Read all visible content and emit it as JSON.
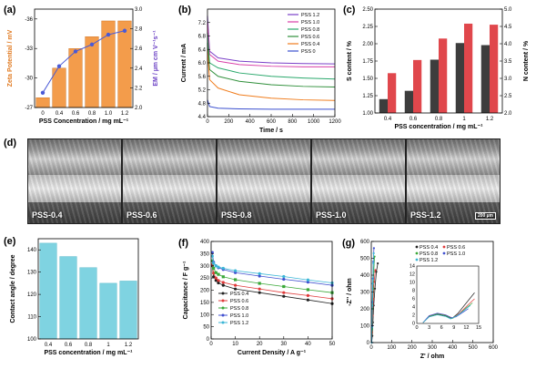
{
  "chart_data": [
    {
      "panel": "(a)",
      "type": "bar",
      "categories": [
        "0",
        "0.4",
        "0.6",
        "0.8",
        "1.0",
        "1.2"
      ],
      "bar_values": [
        -28.0,
        -31.0,
        -33.0,
        -34.2,
        -35.8,
        -35.8
      ],
      "line_values": [
        2.15,
        2.42,
        2.57,
        2.64,
        2.74,
        2.78
      ],
      "xlabel": "PSS Concentration / mg mL⁻¹",
      "ylabel": "Zeta Potential / mV",
      "ylabel2": "EM / µm cm V⁻¹s⁻¹",
      "ylim": [
        -27,
        -37
      ],
      "yticks": [
        "-27",
        "-30",
        "-33",
        "-36"
      ],
      "y2lim": [
        2.0,
        3.0
      ],
      "y2ticks": [
        "2.0",
        "2.2",
        "2.4",
        "2.6",
        "2.8",
        "3.0"
      ],
      "bar_color": "#f39c4b",
      "line_color": "#4a5ad6"
    },
    {
      "panel": "(b)",
      "type": "line",
      "xlabel": "Time / s",
      "ylabel": "Current / mA",
      "xlim": [
        0,
        1200
      ],
      "xticks": [
        "0",
        "200",
        "400",
        "600",
        "800",
        "1000",
        "1200"
      ],
      "ylim": [
        4.4,
        7.6
      ],
      "yticks": [
        "4.4",
        "4.8",
        "5.2",
        "5.6",
        "6.0",
        "6.4",
        "6.8",
        "7.2"
      ],
      "series": [
        {
          "name": "PSS 1.2",
          "color": "#7a40c8",
          "values": [
            [
              0,
              7.4
            ],
            [
              20,
              6.35
            ],
            [
              100,
              6.15
            ],
            [
              300,
              6.05
            ],
            [
              600,
              6.0
            ],
            [
              900,
              5.98
            ],
            [
              1200,
              5.97
            ]
          ]
        },
        {
          "name": "PSS 1.0",
          "color": "#d93fa8",
          "values": [
            [
              0,
              7.2
            ],
            [
              20,
              6.25
            ],
            [
              100,
              6.05
            ],
            [
              300,
              5.95
            ],
            [
              600,
              5.9
            ],
            [
              900,
              5.88
            ],
            [
              1200,
              5.88
            ]
          ]
        },
        {
          "name": "PSS 0.8",
          "color": "#2aa86c",
          "values": [
            [
              0,
              6.9
            ],
            [
              20,
              6.0
            ],
            [
              100,
              5.85
            ],
            [
              300,
              5.7
            ],
            [
              600,
              5.6
            ],
            [
              900,
              5.55
            ],
            [
              1200,
              5.52
            ]
          ]
        },
        {
          "name": "PSS 0.6",
          "color": "#2f8f3a",
          "values": [
            [
              0,
              6.6
            ],
            [
              20,
              5.8
            ],
            [
              100,
              5.6
            ],
            [
              300,
              5.45
            ],
            [
              600,
              5.35
            ],
            [
              900,
              5.3
            ],
            [
              1200,
              5.28
            ]
          ]
        },
        {
          "name": "PSS 0.4",
          "color": "#f07c1c",
          "values": [
            [
              0,
              6.4
            ],
            [
              20,
              5.5
            ],
            [
              100,
              5.25
            ],
            [
              300,
              5.05
            ],
            [
              600,
              4.95
            ],
            [
              900,
              4.9
            ],
            [
              1200,
              4.88
            ]
          ]
        },
        {
          "name": "PSS 0",
          "color": "#3a4fcf",
          "values": [
            [
              0,
              4.9
            ],
            [
              20,
              4.7
            ],
            [
              100,
              4.65
            ],
            [
              300,
              4.63
            ],
            [
              600,
              4.62
            ],
            [
              900,
              4.62
            ],
            [
              1200,
              4.62
            ]
          ]
        }
      ]
    },
    {
      "panel": "(c)",
      "type": "bar",
      "categories": [
        "0.4",
        "0.6",
        "0.8",
        "1",
        "1.2"
      ],
      "xlabel": "PSS concentration / mg mL⁻¹",
      "ylabel": "S content / %",
      "ylabel2": "N content / %",
      "ylim": [
        1.0,
        2.5
      ],
      "yticks": [
        "1.00",
        "1.25",
        "1.50",
        "1.75",
        "2.00",
        "2.25",
        "2.50"
      ],
      "y2lim": [
        2.0,
        5.0
      ],
      "y2ticks": [
        "2.0",
        "2.5",
        "3.0",
        "3.5",
        "4.0",
        "4.5",
        "5.0"
      ],
      "series": [
        {
          "name": "S content",
          "color": "#3d3d3d",
          "values": [
            1.2,
            1.32,
            1.77,
            2.01,
            1.98
          ]
        },
        {
          "name": "N content",
          "color": "#e0474c",
          "values": [
            3.15,
            3.53,
            4.15,
            4.58,
            4.55
          ]
        }
      ]
    },
    {
      "panel": "(e)",
      "type": "bar",
      "categories": [
        "0.4",
        "0.6",
        "0.8",
        "1",
        "1.2"
      ],
      "values": [
        143,
        137,
        132,
        125,
        126
      ],
      "xlabel": "PSS concentration / mg mL⁻¹",
      "ylabel": "Contact angle / degree",
      "ylim": [
        100,
        145
      ],
      "yticks": [
        "100",
        "110",
        "120",
        "130",
        "140"
      ],
      "bar_color": "#7fd3e1"
    },
    {
      "panel": "(f)",
      "type": "line",
      "xlabel": "Current Density / A g⁻¹",
      "ylabel": "Capacitance / F g⁻¹",
      "xlim": [
        0,
        50
      ],
      "xticks": [
        "0",
        "10",
        "20",
        "30",
        "40",
        "50"
      ],
      "ylim": [
        0,
        400
      ],
      "yticks": [
        "0",
        "50",
        "100",
        "150",
        "200",
        "250",
        "300",
        "350",
        "400"
      ],
      "x": [
        0.5,
        1,
        2,
        3,
        5,
        10,
        20,
        30,
        40,
        50
      ],
      "series": [
        {
          "name": "PSS 0.4",
          "color": "#222222",
          "values": [
            300,
            255,
            240,
            230,
            220,
            205,
            190,
            175,
            160,
            145
          ]
        },
        {
          "name": "PSS 0.6",
          "color": "#e03a3a",
          "values": [
            305,
            270,
            250,
            240,
            232,
            220,
            205,
            190,
            178,
            165
          ]
        },
        {
          "name": "PSS 0.8",
          "color": "#3aa838",
          "values": [
            320,
            290,
            272,
            265,
            255,
            243,
            228,
            215,
            202,
            190
          ]
        },
        {
          "name": "PSS 1.0",
          "color": "#4050d0",
          "values": [
            355,
            315,
            300,
            292,
            285,
            272,
            258,
            245,
            233,
            220
          ]
        },
        {
          "name": "PSS 1.2",
          "color": "#3bb6d6",
          "values": [
            340,
            310,
            300,
            295,
            290,
            280,
            268,
            256,
            242,
            230
          ]
        }
      ]
    },
    {
      "panel": "(g)",
      "type": "scatter",
      "xlabel": "Z' / ohm",
      "ylabel": "-Z'' / ohm",
      "xlim": [
        0,
        600
      ],
      "xticks": [
        "0",
        "100",
        "200",
        "300",
        "400",
        "500",
        "600"
      ],
      "ylim": [
        0,
        600
      ],
      "yticks": [
        "0",
        "100",
        "200",
        "300",
        "400",
        "500",
        "600"
      ],
      "inset": {
        "xlim": [
          0,
          15
        ],
        "xticks": [
          "0",
          "3",
          "6",
          "9",
          "12",
          "15"
        ],
        "ylim": [
          0,
          14
        ],
        "yticks": [
          "0",
          "2",
          "4",
          "6",
          "8",
          "10",
          "12",
          "14"
        ]
      },
      "series": [
        {
          "name": "PSS 0.4",
          "color": "#222222",
          "values": [
            [
              2,
              0
            ],
            [
              5,
              40
            ],
            [
              8,
              120
            ],
            [
              12,
              220
            ],
            [
              18,
              320
            ],
            [
              25,
              420
            ],
            [
              32,
              470
            ]
          ]
        },
        {
          "name": "PSS 0.6",
          "color": "#e03a3a",
          "values": [
            [
              2,
              0
            ],
            [
              4,
              60
            ],
            [
              7,
              160
            ],
            [
              10,
              260
            ],
            [
              14,
              360
            ],
            [
              20,
              430
            ]
          ]
        },
        {
          "name": "PSS 0.8",
          "color": "#3aa838",
          "values": [
            [
              2,
              0
            ],
            [
              4,
              80
            ],
            [
              6,
              200
            ],
            [
              9,
              320
            ],
            [
              12,
              420
            ],
            [
              16,
              510
            ]
          ]
        },
        {
          "name": "PSS 1.0",
          "color": "#4050d0",
          "values": [
            [
              2,
              0
            ],
            [
              3,
              100
            ],
            [
              5,
              240
            ],
            [
              8,
              380
            ],
            [
              10,
              480
            ],
            [
              13,
              560
            ]
          ]
        },
        {
          "name": "PSS 1.2",
          "color": "#3bb6d6",
          "values": [
            [
              2,
              0
            ],
            [
              3,
              90
            ],
            [
              5,
              220
            ],
            [
              7,
              350
            ],
            [
              10,
              470
            ],
            [
              12,
              530
            ]
          ]
        }
      ]
    }
  ],
  "sem": {
    "panel": "(d)",
    "labels": [
      "PSS-0.4",
      "PSS-0.6",
      "PSS-0.8",
      "PSS-1.0",
      "PSS-1.2"
    ],
    "scale": "200 µm"
  }
}
